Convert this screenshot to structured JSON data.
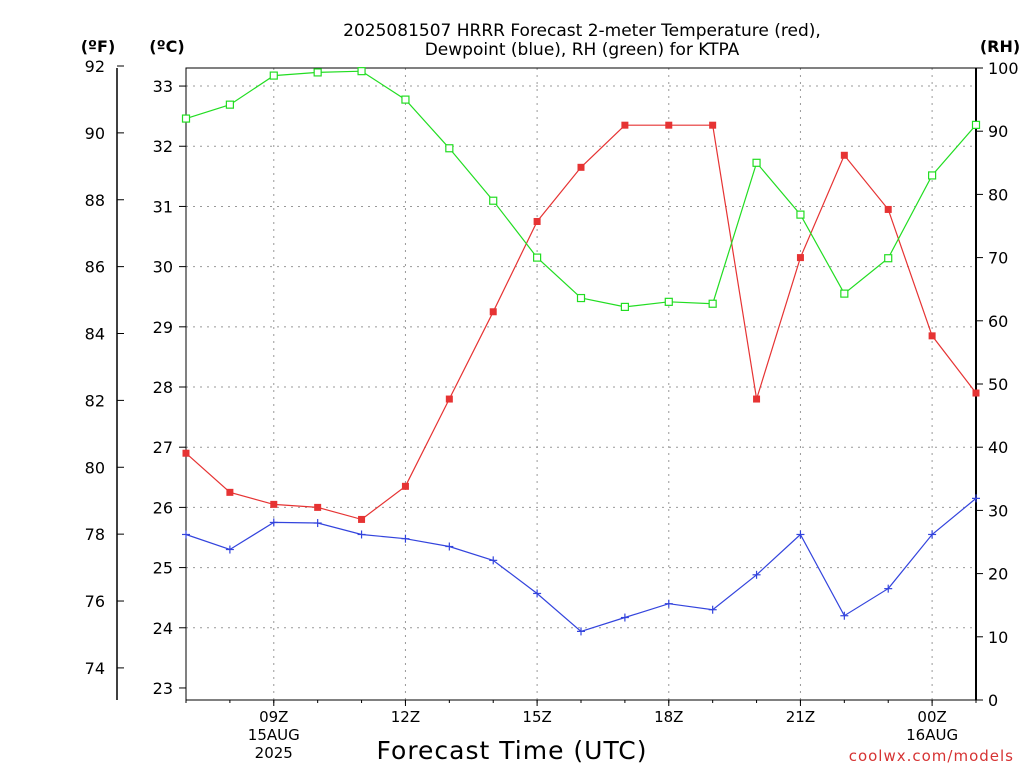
{
  "title_line1": "2025081507 HRRR Forecast 2-meter Temperature (red),",
  "title_line2": "Dewpoint (blue), RH (green) for KTPA",
  "left_outer_unit": "(ºF)",
  "left_inner_unit": "(ºC)",
  "right_unit": "(RH)",
  "x_axis_title": "Forecast Time (UTC)",
  "credit": "coolwx.com/models",
  "x_ticks": [
    {
      "hour": 9,
      "lines": [
        "09Z",
        "15AUG",
        "2025"
      ]
    },
    {
      "hour": 12,
      "lines": [
        "12Z"
      ]
    },
    {
      "hour": 15,
      "lines": [
        "15Z"
      ]
    },
    {
      "hour": 18,
      "lines": [
        "18Z"
      ]
    },
    {
      "hour": 21,
      "lines": [
        "21Z"
      ]
    },
    {
      "hour": 24,
      "lines": [
        "00Z",
        "16AUG"
      ]
    }
  ],
  "colors": {
    "temperature": "#e63333",
    "dewpoint": "#3344dd",
    "rh": "#22dd22",
    "grid": "#999999",
    "axis": "#000000",
    "credit": "#d63333"
  },
  "chart_data": {
    "type": "line",
    "x_unit": "hour UTC from 00Z 15AUG 2025",
    "x": [
      7,
      8,
      9,
      10,
      11,
      12,
      13,
      14,
      15,
      16,
      17,
      18,
      19,
      20,
      21,
      22,
      23,
      24,
      25
    ],
    "xlim": [
      7,
      25
    ],
    "ylim_celsius": [
      22.8,
      33.3
    ],
    "ylim_fahrenheit": [
      73,
      92
    ],
    "ylim_rh": [
      0,
      100
    ],
    "y_ticks_celsius": [
      23,
      24,
      25,
      26,
      27,
      28,
      29,
      30,
      31,
      32,
      33
    ],
    "y_ticks_fahrenheit": [
      74,
      76,
      78,
      80,
      82,
      84,
      86,
      88,
      90,
      92
    ],
    "y_ticks_rh": [
      0,
      10,
      20,
      30,
      40,
      50,
      60,
      70,
      80,
      90,
      100
    ],
    "grid": true,
    "series": [
      {
        "name": "2-meter Temperature",
        "axis": "celsius",
        "marker": "filled-square",
        "values": [
          26.9,
          26.25,
          26.05,
          26.0,
          25.8,
          26.35,
          27.8,
          29.25,
          30.75,
          31.65,
          32.35,
          32.35,
          32.35,
          27.8,
          30.15,
          31.85,
          30.95,
          28.85,
          27.9
        ]
      },
      {
        "name": "Dewpoint",
        "axis": "celsius",
        "marker": "plus",
        "values": [
          25.55,
          25.3,
          25.75,
          25.74,
          25.55,
          25.48,
          25.35,
          25.12,
          24.57,
          23.94,
          24.17,
          24.4,
          24.3,
          24.88,
          25.55,
          24.2,
          24.65,
          25.55,
          26.15
        ]
      },
      {
        "name": "RH",
        "axis": "rh",
        "marker": "open-square",
        "values": [
          92,
          94.2,
          98.8,
          99.3,
          99.5,
          95.0,
          87.3,
          79.0,
          70.0,
          63.6,
          62.2,
          63.0,
          62.7,
          85.0,
          76.8,
          64.3,
          69.9,
          83.0,
          91.0
        ]
      }
    ]
  }
}
